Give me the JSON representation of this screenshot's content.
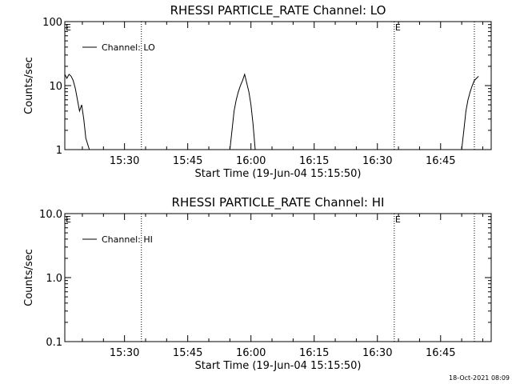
{
  "chart_data": [
    {
      "type": "line",
      "title": "RHESSI PARTICLE_RATE Channel: LO",
      "xlabel": "Start Time (19-Jun-04 15:15:50)",
      "ylabel": "Counts/sec",
      "yscale": "log",
      "ylim": [
        1,
        100
      ],
      "xlim": [
        "15:15:50",
        "16:57:00"
      ],
      "xticks": [
        "15:30",
        "15:45",
        "16:00",
        "16:15",
        "16:30",
        "16:45"
      ],
      "yticks": [
        "1",
        "10",
        "100"
      ],
      "legend": {
        "label": "Channel: LO",
        "placement": "top-left"
      },
      "markers": [
        {
          "x": "15:15:50",
          "label": "E"
        },
        {
          "x": "15:34:00",
          "label": ""
        },
        {
          "x": "16:34:00",
          "label": "E"
        },
        {
          "x": "16:53:00",
          "label": ""
        }
      ],
      "series": [
        {
          "x": [
            "15:15:50",
            "15:16:20",
            "15:16:50",
            "15:17:20",
            "15:17:50",
            "15:18:20",
            "15:18:50",
            "15:19:20",
            "15:19:50",
            "15:20:20",
            "15:20:50",
            "15:21:40"
          ],
          "values": [
            15,
            13,
            15,
            14,
            12,
            9,
            6,
            4,
            5,
            3,
            1.5,
            1
          ]
        },
        {
          "x": [
            "15:55:00",
            "15:55:30",
            "15:56:00",
            "15:56:30",
            "15:57:00",
            "15:57:30",
            "15:58:00",
            "15:58:30",
            "15:59:00",
            "15:59:30",
            "16:00:00",
            "16:00:30",
            "16:01:00"
          ],
          "values": [
            1,
            2,
            4,
            6,
            8,
            10,
            12,
            15,
            11,
            8,
            5,
            2.5,
            1
          ]
        },
        {
          "x": [
            "16:50:00",
            "16:50:30",
            "16:51:00",
            "16:51:30",
            "16:52:00",
            "16:52:30",
            "16:53:00",
            "16:53:30",
            "16:54:00"
          ],
          "values": [
            1,
            2,
            4,
            6,
            8,
            10,
            12,
            13,
            14
          ]
        }
      ]
    },
    {
      "type": "line",
      "title": "RHESSI PARTICLE_RATE Channel: HI",
      "xlabel": "Start Time (19-Jun-04 15:15:50)",
      "ylabel": "Counts/sec",
      "yscale": "log",
      "ylim": [
        0.1,
        10
      ],
      "xlim": [
        "15:15:50",
        "16:57:00"
      ],
      "xticks": [
        "15:30",
        "15:45",
        "16:00",
        "16:15",
        "16:30",
        "16:45"
      ],
      "yticks": [
        "0.1",
        "1.0",
        "10.0"
      ],
      "legend": {
        "label": "Channel: HI",
        "placement": "top-left"
      },
      "markers": [
        {
          "x": "15:15:50",
          "label": "E"
        },
        {
          "x": "15:34:00",
          "label": ""
        },
        {
          "x": "16:34:00",
          "label": "E"
        },
        {
          "x": "16:53:00",
          "label": ""
        }
      ],
      "series": []
    }
  ],
  "footer": {
    "timestamp": "18-Oct-2021 08:09"
  }
}
